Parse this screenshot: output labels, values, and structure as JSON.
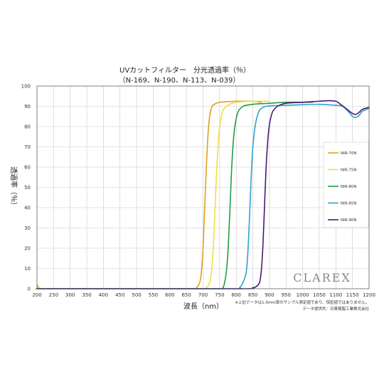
{
  "chart_data": {
    "type": "line",
    "title": "UVカットフィルター　分光透過率（％）",
    "subtitle": "（N-169、N-190、N-113、N-039）",
    "xlabel": "波長（nm）",
    "ylabel": "透過率（％）",
    "xlim": [
      200,
      1200
    ],
    "ylim": [
      0,
      100
    ],
    "x_ticks": [
      200,
      250,
      300,
      350,
      400,
      450,
      500,
      550,
      600,
      650,
      700,
      750,
      800,
      850,
      900,
      950,
      1000,
      1050,
      1100,
      1150,
      1200
    ],
    "y_ticks": [
      0,
      10,
      20,
      30,
      40,
      50,
      60,
      70,
      80,
      90,
      100
    ],
    "grid": true,
    "legend_position": "right",
    "series": [
      {
        "name": "NIR-70N",
        "color": "#e0a020",
        "x": [
          200,
          205,
          210,
          230,
          600,
          670,
          680,
          690,
          695,
          700,
          705,
          710,
          715,
          720,
          725,
          730,
          740,
          750,
          775,
          800,
          850,
          875
        ],
        "y": [
          2,
          0.5,
          0,
          0,
          0,
          0,
          0.5,
          3,
          8,
          20,
          40,
          60,
          76,
          85,
          89,
          90.5,
          91.5,
          92,
          92.3,
          92.5,
          92.5,
          92
        ]
      },
      {
        "name": "NIR-75N",
        "color": "#f0e040",
        "x": [
          200,
          600,
          700,
          710,
          720,
          725,
          730,
          735,
          740,
          745,
          750,
          755,
          760,
          770,
          780,
          800,
          850,
          900
        ],
        "y": [
          0,
          0,
          0,
          0.5,
          3,
          8,
          18,
          35,
          55,
          70,
          80,
          85,
          88,
          90,
          91,
          92,
          92.5,
          92.5
        ]
      },
      {
        "name": "NIR-80N",
        "color": "#20a040",
        "x": [
          200,
          600,
          750,
          760,
          765,
          770,
          775,
          780,
          785,
          790,
          795,
          800,
          805,
          810,
          820,
          830,
          850,
          900,
          950,
          1000,
          1030
        ],
        "y": [
          0,
          0,
          0,
          0.5,
          3,
          8,
          18,
          35,
          55,
          70,
          79,
          84,
          87,
          88.5,
          90,
          90.5,
          91,
          91.5,
          92,
          92,
          92
        ]
      },
      {
        "name": "NIR-85N",
        "color": "#30a0d0",
        "x": [
          200,
          600,
          800,
          810,
          820,
          830,
          835,
          840,
          845,
          850,
          855,
          860,
          865,
          870,
          880,
          890,
          900,
          950,
          1000,
          1050,
          1100,
          1120,
          1140,
          1150,
          1160,
          1170,
          1180,
          1200
        ],
        "y": [
          0,
          0,
          0,
          0.5,
          3,
          8,
          18,
          35,
          55,
          70,
          78,
          83,
          86,
          88,
          89.5,
          90,
          90.2,
          90.5,
          90.8,
          91,
          90.5,
          90,
          87,
          85,
          84.5,
          85.5,
          87.5,
          89
        ]
      },
      {
        "name": "NIR-90N",
        "color": "#4a1a70",
        "x": [
          200,
          600,
          830,
          850,
          860,
          870,
          875,
          880,
          885,
          890,
          895,
          900,
          905,
          910,
          920,
          930,
          950,
          1000,
          1050,
          1080,
          1100,
          1110,
          1130,
          1150,
          1160,
          1170,
          1180,
          1200
        ],
        "y": [
          0,
          0,
          0,
          0.5,
          1,
          3,
          8,
          20,
          40,
          60,
          73,
          81,
          85,
          87.5,
          89.5,
          90.5,
          91.5,
          92,
          92.5,
          92.8,
          92.5,
          91.5,
          89,
          86.5,
          86,
          87,
          88.5,
          89.5
        ]
      }
    ]
  },
  "brand": "CLAREX",
  "notes": [
    "※上記データは1.0mm厚のサンプル測定値であり、保証値ではありません。",
    "データ提供先：日東樹脂工業株式会社"
  ]
}
